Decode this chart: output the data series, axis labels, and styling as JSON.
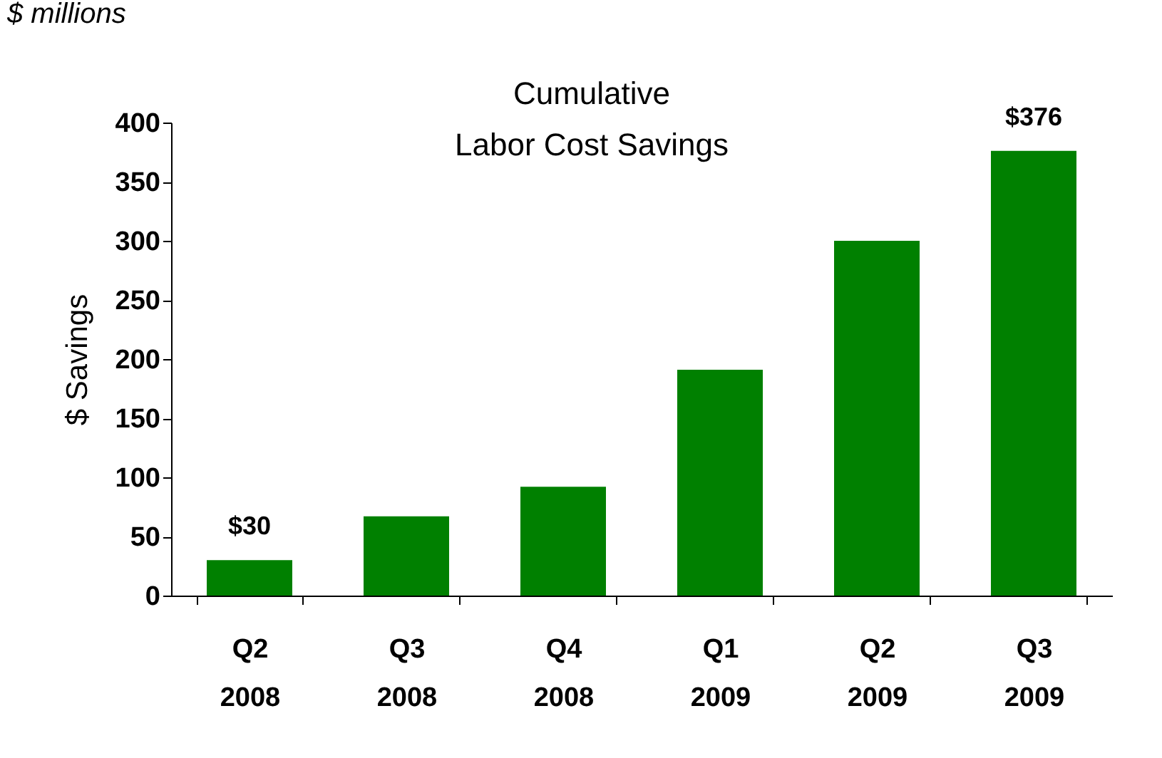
{
  "chart_data": {
    "type": "bar",
    "title": "Cumulative\nLabor Cost Savings",
    "ylabel": "$ Savings",
    "annotations": [
      "$ millions"
    ],
    "categories": [
      "Q2\n2008",
      "Q3\n2008",
      "Q4\n2008",
      "Q1\n2009",
      "Q2\n2009",
      "Q3\n2009"
    ],
    "values": [
      30,
      67,
      92,
      191,
      300,
      376
    ],
    "value_labels": [
      "$30",
      null,
      null,
      null,
      null,
      "$376"
    ],
    "color": "#008000",
    "ylim": [
      0,
      400
    ],
    "yticks": [
      0,
      50,
      100,
      150,
      200,
      250,
      300,
      350,
      400
    ],
    "grid": false
  }
}
